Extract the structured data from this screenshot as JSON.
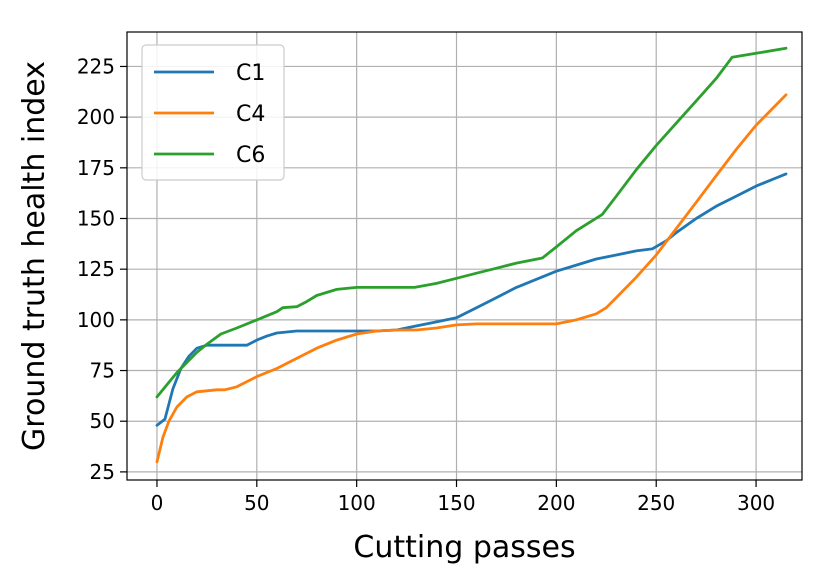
{
  "chart_data": {
    "type": "line",
    "xlabel": "Cutting passes",
    "ylabel": "Ground truth health index",
    "xlim": [
      -15,
      323
    ],
    "ylim": [
      21,
      242
    ],
    "xticks": [
      0,
      50,
      100,
      150,
      200,
      250,
      300
    ],
    "yticks": [
      25,
      50,
      75,
      100,
      125,
      150,
      175,
      200,
      225
    ],
    "grid": true,
    "legend_position": "top-left",
    "series": [
      {
        "name": "C1",
        "color": "#1f77b4",
        "x": [
          0,
          4,
          8,
          12,
          16,
          20,
          25,
          30,
          35,
          40,
          45,
          50,
          55,
          60,
          65,
          70,
          80,
          90,
          100,
          110,
          120,
          130,
          140,
          150,
          160,
          170,
          180,
          190,
          200,
          210,
          220,
          230,
          240,
          248,
          255,
          260,
          270,
          280,
          290,
          300,
          310,
          315
        ],
        "y": [
          48,
          51,
          66,
          76,
          82,
          86,
          87.5,
          87.5,
          87.5,
          87.5,
          87.5,
          90,
          92,
          93.5,
          94,
          94.5,
          94.5,
          94.5,
          94.5,
          94.5,
          95,
          97,
          99,
          101,
          106,
          111,
          116,
          120,
          124,
          127,
          130,
          132,
          134,
          135,
          139,
          143,
          150,
          156,
          161,
          166,
          170,
          172
        ]
      },
      {
        "name": "C4",
        "color": "#ff7f0e",
        "x": [
          0,
          3,
          6,
          10,
          15,
          20,
          25,
          30,
          34,
          40,
          50,
          60,
          70,
          80,
          90,
          100,
          110,
          120,
          130,
          140,
          150,
          160,
          170,
          180,
          190,
          200,
          210,
          220,
          225,
          230,
          240,
          250,
          260,
          270,
          280,
          290,
          300,
          310,
          315
        ],
        "y": [
          30,
          42,
          50,
          57,
          62,
          64.5,
          65,
          65.5,
          65.5,
          67,
          72,
          76,
          81,
          86,
          90,
          93,
          94.5,
          95,
          95,
          96,
          97.5,
          98,
          98,
          98,
          98,
          98,
          100,
          103,
          106,
          111,
          121,
          132,
          145,
          158,
          171,
          184,
          196,
          206,
          211
        ]
      },
      {
        "name": "C6",
        "color": "#2ca02c",
        "x": [
          0,
          5,
          10,
          15,
          20,
          25,
          32,
          40,
          50,
          60,
          63,
          70,
          75,
          80,
          90,
          100,
          110,
          120,
          129,
          140,
          150,
          160,
          170,
          180,
          193,
          200,
          210,
          223,
          230,
          240,
          250,
          260,
          270,
          280,
          288,
          300,
          315
        ],
        "y": [
          62,
          68,
          74,
          79,
          84,
          88,
          93,
          96,
          100,
          104,
          106,
          106.5,
          109,
          112,
          115,
          116,
          116,
          116,
          116,
          118,
          120.5,
          123,
          125.5,
          128,
          130.5,
          136,
          144,
          152,
          161,
          174,
          186,
          197,
          208,
          219,
          229.5,
          231.5,
          234
        ]
      }
    ]
  }
}
